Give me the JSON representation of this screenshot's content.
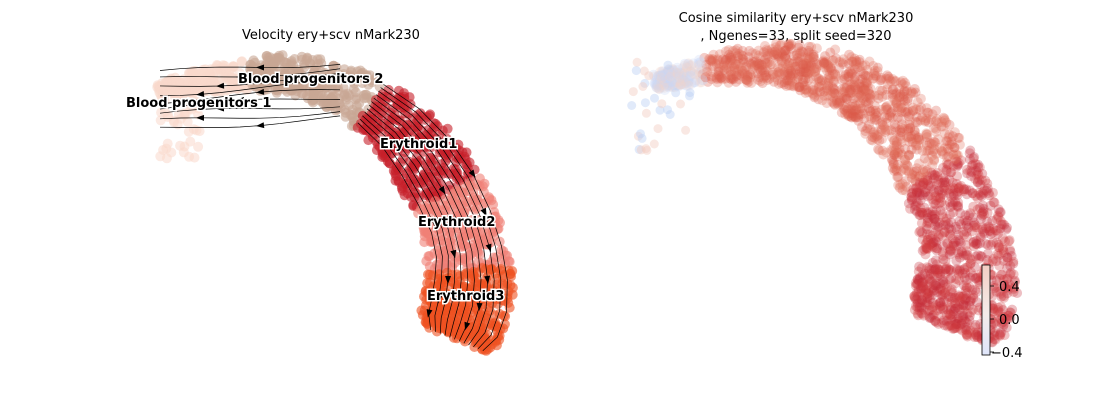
{
  "chart_data": [
    {
      "type": "scatter",
      "title": "Velocity ery+scv nMark230",
      "overlay": "velocity-streamlines",
      "axes_visible": false,
      "series": [
        {
          "name": "Blood progenitors 1",
          "color": "#f9d9cc"
        },
        {
          "name": "Blood progenitors 2",
          "color": "#c8a794"
        },
        {
          "name": "Erythroid1",
          "color": "#c7202a"
        },
        {
          "name": "Erythroid2",
          "color": "#f08077"
        },
        {
          "name": "Erythroid3",
          "color": "#ef5222"
        }
      ]
    },
    {
      "type": "scatter",
      "title": "Cosine similarity ery+scv nMark230",
      "title_line2": ", Ngenes=33, split seed=320",
      "axes_visible": false,
      "colorbar": {
        "ticks": [
          "0.4",
          "0.0",
          "−0.4"
        ],
        "tick_values": [
          0.4,
          0.0,
          -0.4
        ],
        "range": [
          -0.5,
          0.6
        ],
        "cmap": "coolwarm",
        "low_color": "#bcd0f5",
        "mid_color": "#f2f2f2",
        "high_color": "#b40426"
      }
    }
  ]
}
